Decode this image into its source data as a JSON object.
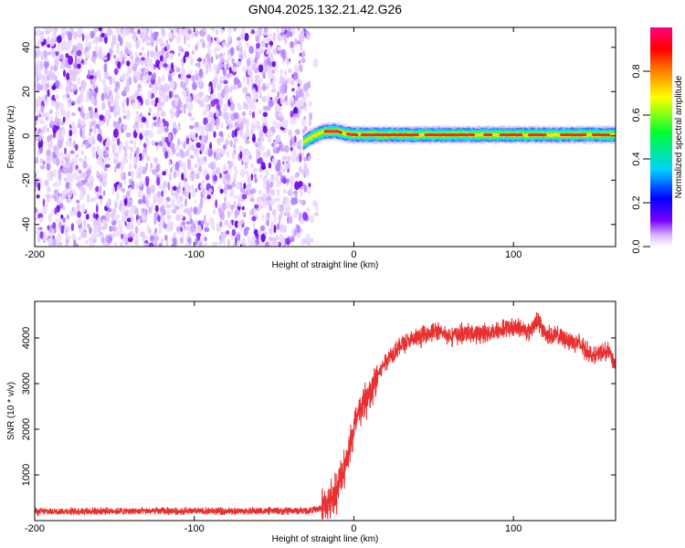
{
  "title": "GN04.2025.132.21.42.G26",
  "chart_data": [
    {
      "type": "heatmap",
      "xlabel": "Height of straight line (km)",
      "ylabel": "Frequency (Hz)",
      "xlim": [
        -200,
        164
      ],
      "ylim": [
        -50,
        49
      ],
      "x_ticks": [
        -200,
        -100,
        0,
        100
      ],
      "y_ticks": [
        40,
        20,
        0,
        -20,
        -40
      ],
      "colorbar": {
        "label": "Normalized spectral amplitude",
        "range": [
          0,
          1
        ],
        "ticks": [
          0.0,
          0.2,
          0.4,
          0.6,
          0.8
        ],
        "colors": [
          "#ffffff",
          "#d9b8ff",
          "#7a00ff",
          "#0000ff",
          "#00d0ff",
          "#00ff30",
          "#ffff00",
          "#ff8000",
          "#ff0000",
          "#ff0080"
        ]
      },
      "noise_region": {
        "x_range": [
          -200,
          -28
        ],
        "freq_range": [
          -50,
          49
        ],
        "typical_amplitude": 0.05
      },
      "signal_track": [
        {
          "x": -32,
          "freq": -3,
          "amplitude": 0.4
        },
        {
          "x": -25,
          "freq": 0,
          "amplitude": 0.5
        },
        {
          "x": -18,
          "freq": 2,
          "amplitude": 0.9
        },
        {
          "x": -10,
          "freq": 2,
          "amplitude": 0.9
        },
        {
          "x": -5,
          "freq": 1,
          "amplitude": 0.8
        },
        {
          "x": 0,
          "freq": 0.5,
          "amplitude": 0.9
        },
        {
          "x": 20,
          "freq": 0.5,
          "amplitude": 0.95
        },
        {
          "x": 50,
          "freq": 0.5,
          "amplitude": 0.9
        },
        {
          "x": 80,
          "freq": 0.5,
          "amplitude": 0.85
        },
        {
          "x": 110,
          "freq": 0.5,
          "amplitude": 0.95
        },
        {
          "x": 140,
          "freq": 0.5,
          "amplitude": 0.85
        },
        {
          "x": 164,
          "freq": 0.5,
          "amplitude": 0.7
        }
      ]
    },
    {
      "type": "line",
      "xlabel": "Height of straight line (km)",
      "ylabel": "SNR (10 * v/v)",
      "xlim": [
        -200,
        164
      ],
      "ylim": [
        0,
        4800
      ],
      "x_ticks": [
        -200,
        -100,
        0,
        100
      ],
      "y_ticks": [
        1000,
        2000,
        3000,
        4000
      ],
      "color": "#e83030",
      "series": [
        {
          "x": [
            -200,
            -150,
            -100,
            -50,
            -30,
            -22,
            -16,
            -12,
            -10,
            -8,
            -5,
            -2,
            0,
            3,
            6,
            10,
            15,
            20,
            25,
            30,
            40,
            50,
            60,
            70,
            80,
            90,
            100,
            110,
            115,
            120,
            130,
            140,
            150,
            160,
            164
          ],
          "values": [
            200,
            210,
            205,
            210,
            215,
            250,
            400,
            600,
            700,
            950,
            1300,
            1700,
            2000,
            2300,
            2600,
            2700,
            3200,
            3500,
            3700,
            3850,
            4000,
            4150,
            4050,
            4100,
            4100,
            4150,
            4250,
            4150,
            4400,
            4100,
            4000,
            3900,
            3600,
            3700,
            3400
          ]
        }
      ]
    }
  ]
}
